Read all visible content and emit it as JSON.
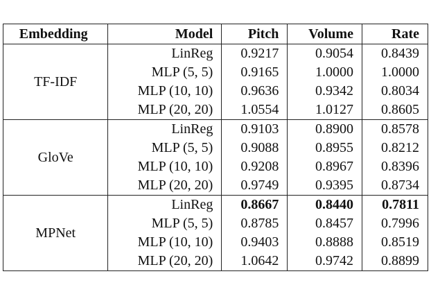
{
  "table": {
    "header": [
      "Embedding",
      "Model",
      "Pitch",
      "Volume",
      "Rate"
    ],
    "groups": [
      {
        "embedding": "TF-IDF",
        "rows": [
          {
            "cells": [
              "LinReg",
              "0.9217",
              "0.9054",
              "0.8439"
            ]
          },
          {
            "cells": [
              "MLP (5, 5)",
              "0.9165",
              "1.0000",
              "1.0000"
            ]
          },
          {
            "cells": [
              "MLP (10, 10)",
              "0.9636",
              "0.9342",
              "0.8034"
            ]
          },
          {
            "cells": [
              "MLP (20, 20)",
              "1.0554",
              "1.0127",
              "0.8605"
            ]
          }
        ]
      },
      {
        "embedding": "GloVe",
        "rows": [
          {
            "cells": [
              "LinReg",
              "0.9103",
              "0.8900",
              "0.8578"
            ]
          },
          {
            "cells": [
              "MLP (5, 5)",
              "0.9088",
              "0.8955",
              "0.8212"
            ]
          },
          {
            "cells": [
              "MLP (10, 10)",
              "0.9208",
              "0.8967",
              "0.8396"
            ]
          },
          {
            "cells": [
              "MLP (20, 20)",
              "0.9749",
              "0.9395",
              "0.8734"
            ]
          }
        ]
      },
      {
        "embedding": "MPNet",
        "rows": [
          {
            "cells": [
              "LinReg",
              "0.8667",
              "0.8440",
              "0.7811"
            ],
            "bold": true
          },
          {
            "cells": [
              "MLP (5, 5)",
              "0.8785",
              "0.8457",
              "0.7996"
            ]
          },
          {
            "cells": [
              "MLP (10, 10)",
              "0.9403",
              "0.8888",
              "0.8519"
            ]
          },
          {
            "cells": [
              "MLP (20, 20)",
              "1.0642",
              "0.9742",
              "0.8899"
            ]
          }
        ]
      }
    ]
  }
}
